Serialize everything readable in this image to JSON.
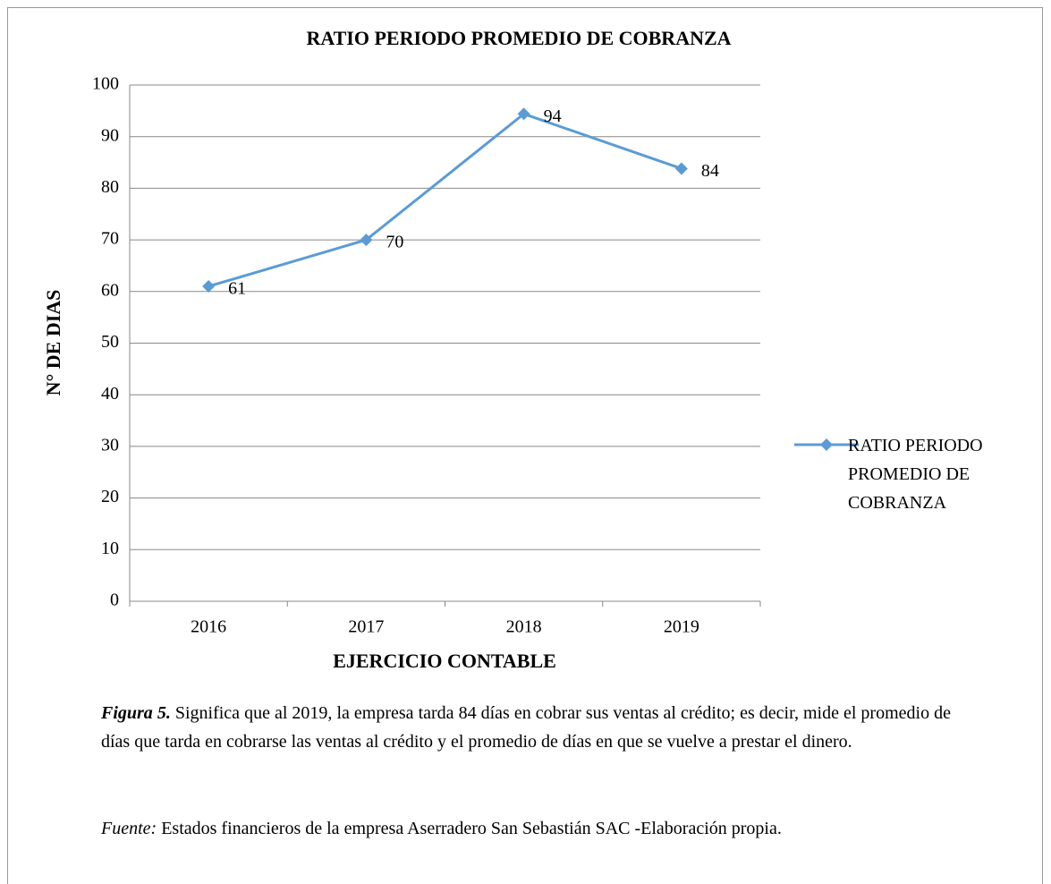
{
  "chart_data": {
    "type": "line",
    "title": "RATIO PERIODO PROMEDIO DE COBRANZA",
    "x_label": "EJERCICIO CONTABLE",
    "y_label": "N° DE DIAS",
    "categories": [
      "2016",
      "2017",
      "2018",
      "2019"
    ],
    "series": [
      {
        "name": "RATIO PERIODO PROMEDIO DE COBRANZA",
        "color": "#5b9bd5",
        "values": [
          61,
          70,
          94.4,
          83.8
        ],
        "value_labels": [
          "61",
          "70",
          "94",
          "84"
        ]
      }
    ],
    "ylim": [
      0,
      100
    ],
    "yticks": [
      0,
      10,
      20,
      30,
      40,
      50,
      60,
      70,
      80,
      90,
      100
    ],
    "grid": true,
    "legend": "right"
  },
  "caption": {
    "label": "Figura 5.",
    "text": " Significa que al 2019, la empresa tarda 84 días en cobrar sus ventas al crédito; es decir, mide el promedio de días que tarda en cobrarse las ventas al crédito y el promedio de días en que se vuelve a prestar el dinero."
  },
  "source": {
    "label": "Fuente:",
    "text": " Estados financieros de la empresa Aserradero San Sebastián SAC -Elaboración propia."
  }
}
